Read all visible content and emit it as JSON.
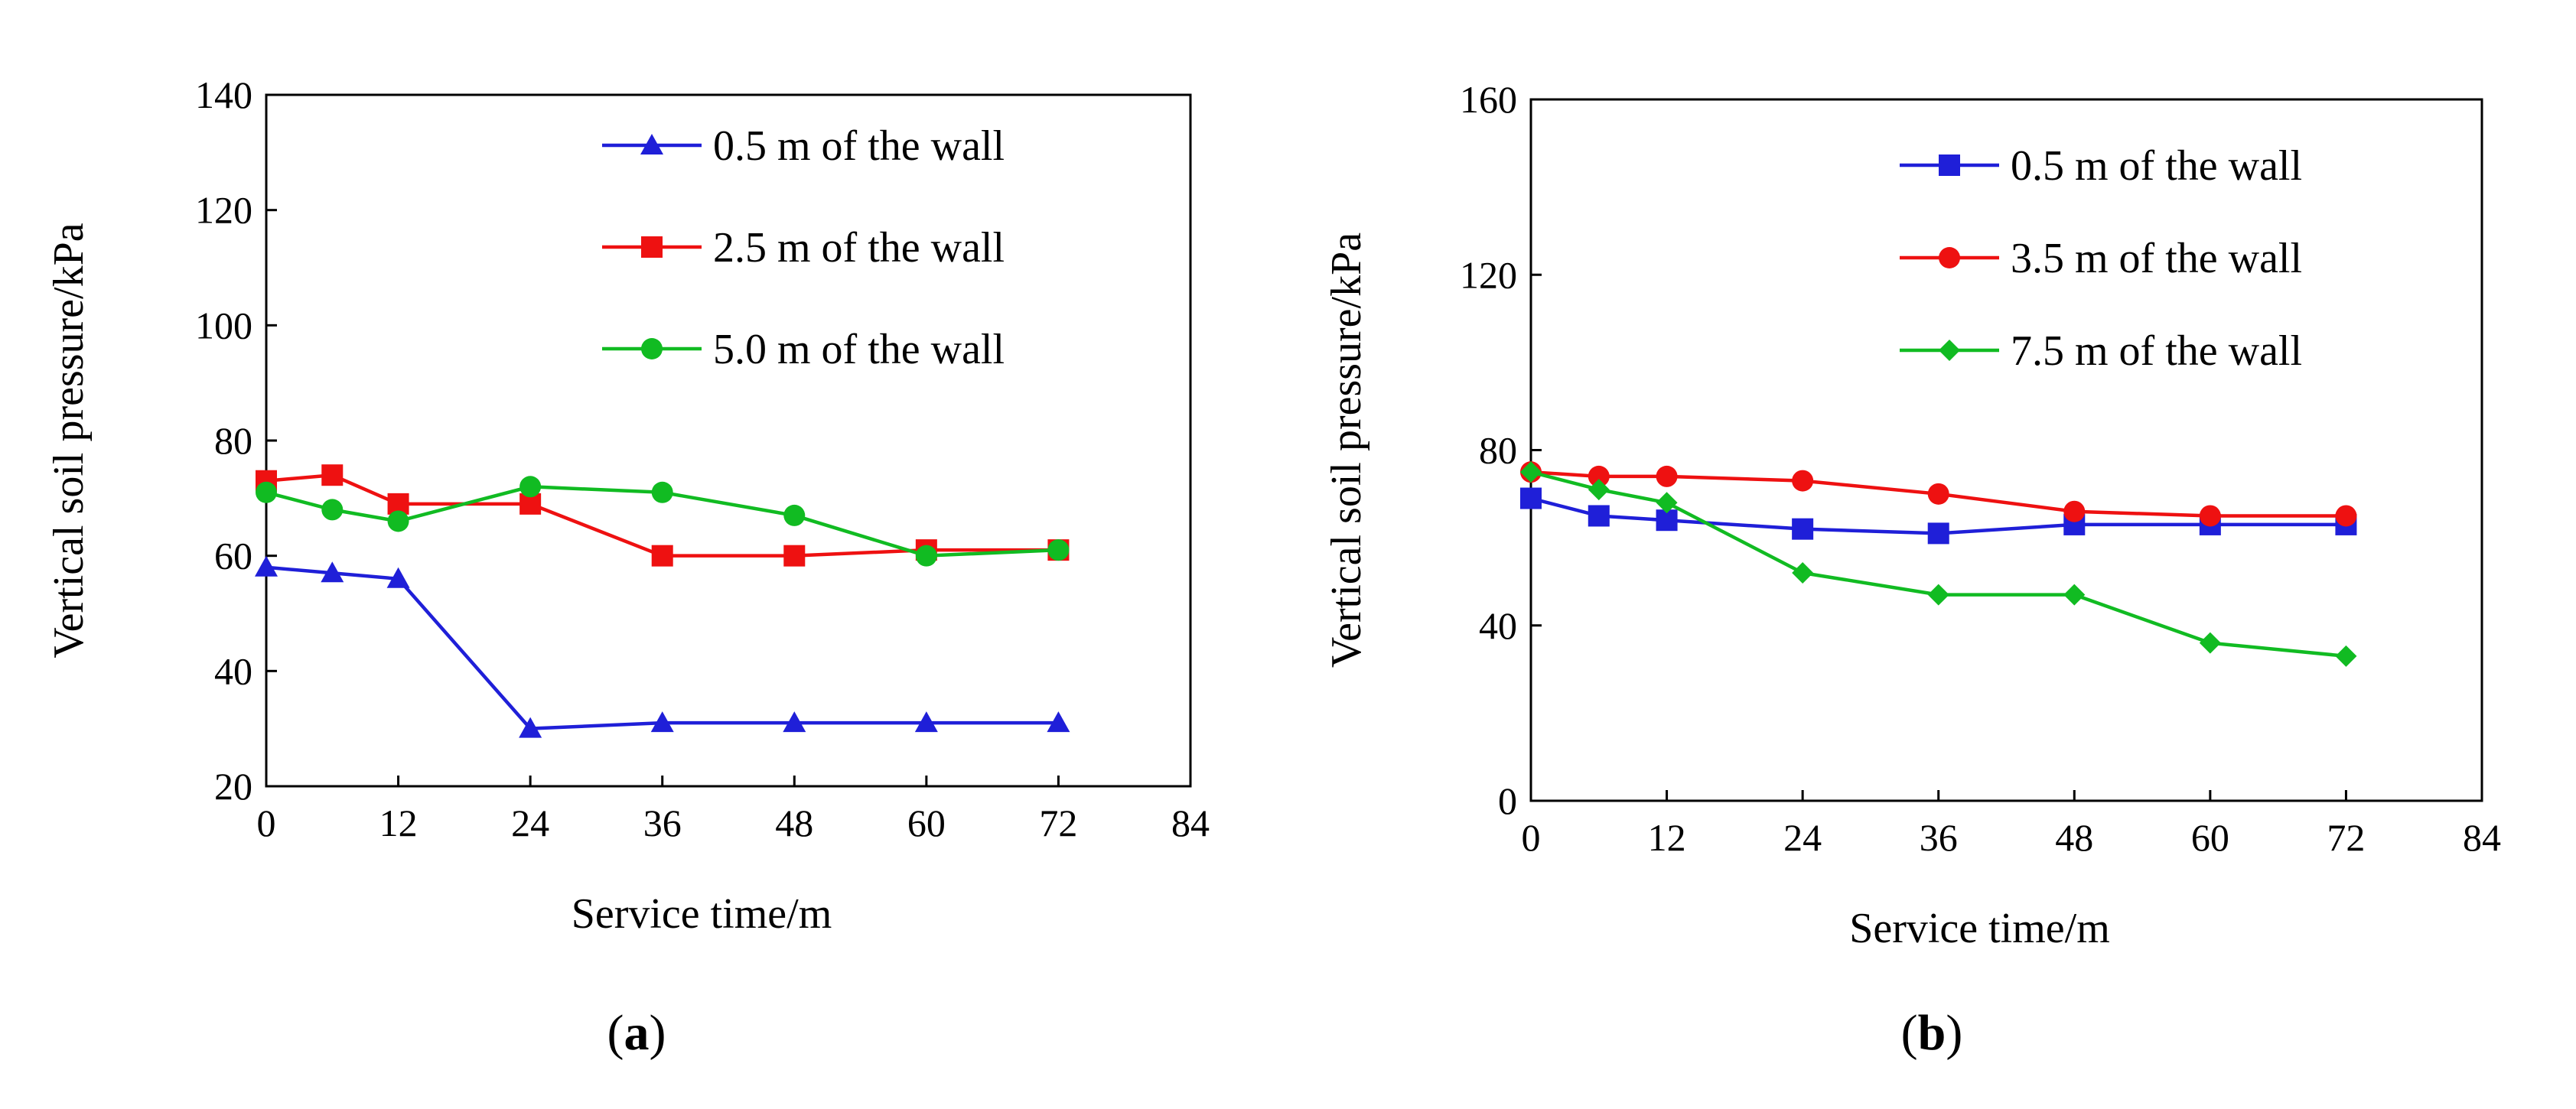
{
  "chart_data": [
    {
      "type": "line",
      "panel": "(a)",
      "panel_prefix": "(",
      "panel_letter": "a",
      "panel_suffix": ")",
      "xlabel": "Service time/m",
      "ylabel": "Vertical soil pressure/kPa",
      "xlim": [
        0,
        84
      ],
      "ylim": [
        20,
        140
      ],
      "xticks": [
        0,
        12,
        24,
        36,
        48,
        60,
        72,
        84
      ],
      "yticks": [
        20,
        40,
        60,
        80,
        100,
        120,
        140
      ],
      "legend_position": "top-right",
      "grid": false,
      "series": [
        {
          "name": "0.5 m of the wall",
          "color": "#1f1fd8",
          "marker": "triangle",
          "x": [
            0,
            6,
            12,
            24,
            36,
            48,
            60,
            72
          ],
          "y": [
            58,
            57,
            56,
            30,
            31,
            31,
            31,
            31
          ]
        },
        {
          "name": "2.5 m of the wall",
          "color": "#ee1111",
          "marker": "square",
          "x": [
            0,
            6,
            12,
            24,
            36,
            48,
            60,
            72
          ],
          "y": [
            73,
            74,
            69,
            69,
            60,
            60,
            61,
            61
          ]
        },
        {
          "name": "5.0 m of the wall",
          "color": "#11bb22",
          "marker": "circle",
          "x": [
            0,
            6,
            12,
            24,
            36,
            48,
            60,
            72
          ],
          "y": [
            71,
            68,
            66,
            72,
            71,
            67,
            60,
            61
          ]
        }
      ]
    },
    {
      "type": "line",
      "panel": "(b)",
      "panel_prefix": "(",
      "panel_letter": "b",
      "panel_suffix": ")",
      "xlabel": "Service time/m",
      "ylabel": "Vertical soil pressure/kPa",
      "xlim": [
        0,
        84
      ],
      "ylim": [
        0,
        160
      ],
      "xticks": [
        0,
        12,
        24,
        36,
        48,
        60,
        72,
        84
      ],
      "yticks": [
        0,
        40,
        80,
        120,
        160
      ],
      "legend_position": "top-right",
      "grid": false,
      "series": [
        {
          "name": "0.5 m of the wall",
          "color": "#1f1fd8",
          "marker": "square",
          "x": [
            0,
            6,
            12,
            24,
            36,
            48,
            60,
            72
          ],
          "y": [
            69,
            65,
            64,
            62,
            61,
            63,
            63,
            63
          ]
        },
        {
          "name": "3.5 m of the wall",
          "color": "#ee1111",
          "marker": "circle",
          "x": [
            0,
            6,
            12,
            24,
            36,
            48,
            60,
            72
          ],
          "y": [
            75,
            74,
            74,
            73,
            70,
            66,
            65,
            65
          ]
        },
        {
          "name": "7.5 m of the wall",
          "color": "#11bb22",
          "marker": "diamond",
          "x": [
            0,
            6,
            12,
            24,
            36,
            48,
            60,
            72
          ],
          "y": [
            75,
            71,
            68,
            52,
            47,
            47,
            36,
            33
          ]
        }
      ]
    }
  ]
}
